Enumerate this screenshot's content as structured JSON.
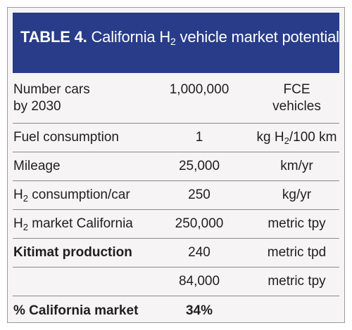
{
  "table": {
    "header": {
      "number": "TABLE 4.",
      "title_pre": "California H",
      "title_sub": "2",
      "title_post": " vehicle market potential"
    },
    "rows": [
      {
        "label_line1": "Number cars",
        "label_line2": "by 2030",
        "value": "1,000,000",
        "unit_line1": "FCE",
        "unit_line2": "vehicles"
      },
      {
        "label": "Fuel consumption",
        "value": "1",
        "unit_pre": "kg H",
        "unit_sub": "2",
        "unit_post": "/100 km"
      },
      {
        "label": "Mileage",
        "value": "25,000",
        "unit": "km/yr"
      },
      {
        "label_pre": "H",
        "label_sub": "2",
        "label_post": " consumption/car",
        "value": "250",
        "unit": "kg/yr"
      },
      {
        "label_pre": "H",
        "label_sub": "2",
        "label_post": " market California",
        "value": "250,000",
        "unit": "metric tpy"
      },
      {
        "label": "Kitimat production",
        "value": "240",
        "unit": "metric tpd"
      },
      {
        "label": "",
        "value": "84,000",
        "unit": "metric tpy"
      },
      {
        "label": "% California market",
        "value": "34%",
        "unit": ""
      }
    ]
  }
}
